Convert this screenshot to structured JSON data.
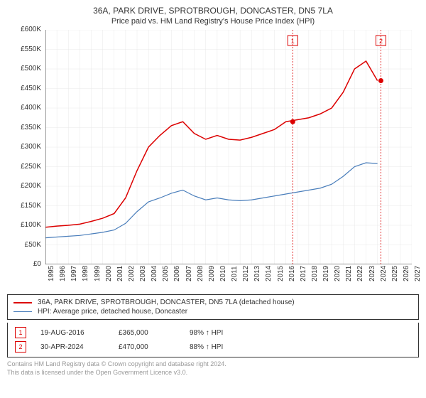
{
  "title": "36A, PARK DRIVE, SPROTBROUGH, DONCASTER, DN5 7LA",
  "subtitle": "Price paid vs. HM Land Registry's House Price Index (HPI)",
  "chart": {
    "type": "line",
    "background": "#ffffff",
    "grid_color": "#e8e8e8",
    "axis_color": "#333333",
    "ylim": [
      0,
      600000
    ],
    "ytick_step": 50000,
    "yticks": [
      "£0",
      "£50K",
      "£100K",
      "£150K",
      "£200K",
      "£250K",
      "£300K",
      "£350K",
      "£400K",
      "£450K",
      "£500K",
      "£550K",
      "£600K"
    ],
    "xlim": [
      1995,
      2027
    ],
    "xticks": [
      1995,
      1996,
      1997,
      1998,
      1999,
      2000,
      2001,
      2002,
      2003,
      2004,
      2005,
      2006,
      2007,
      2008,
      2009,
      2010,
      2011,
      2012,
      2013,
      2014,
      2015,
      2016,
      2017,
      2018,
      2019,
      2020,
      2021,
      2022,
      2023,
      2024,
      2025,
      2026,
      2027
    ],
    "series": [
      {
        "name": "property",
        "color": "#dc0000",
        "width": 1.5,
        "data": [
          [
            1995,
            95000
          ],
          [
            1996,
            98000
          ],
          [
            1997,
            100000
          ],
          [
            1998,
            103000
          ],
          [
            1999,
            110000
          ],
          [
            2000,
            118000
          ],
          [
            2001,
            130000
          ],
          [
            2002,
            170000
          ],
          [
            2003,
            240000
          ],
          [
            2004,
            300000
          ],
          [
            2005,
            330000
          ],
          [
            2006,
            355000
          ],
          [
            2007,
            365000
          ],
          [
            2008,
            335000
          ],
          [
            2009,
            320000
          ],
          [
            2010,
            330000
          ],
          [
            2011,
            320000
          ],
          [
            2012,
            318000
          ],
          [
            2013,
            325000
          ],
          [
            2014,
            335000
          ],
          [
            2015,
            345000
          ],
          [
            2016,
            365000
          ],
          [
            2017,
            370000
          ],
          [
            2018,
            375000
          ],
          [
            2019,
            385000
          ],
          [
            2020,
            400000
          ],
          [
            2021,
            440000
          ],
          [
            2022,
            500000
          ],
          [
            2023,
            520000
          ],
          [
            2024,
            470000
          ]
        ]
      },
      {
        "name": "hpi",
        "color": "#4a7ebb",
        "width": 1.2,
        "data": [
          [
            1995,
            68000
          ],
          [
            1996,
            70000
          ],
          [
            1997,
            72000
          ],
          [
            1998,
            74000
          ],
          [
            1999,
            78000
          ],
          [
            2000,
            82000
          ],
          [
            2001,
            88000
          ],
          [
            2002,
            105000
          ],
          [
            2003,
            135000
          ],
          [
            2004,
            160000
          ],
          [
            2005,
            170000
          ],
          [
            2006,
            182000
          ],
          [
            2007,
            190000
          ],
          [
            2008,
            175000
          ],
          [
            2009,
            165000
          ],
          [
            2010,
            170000
          ],
          [
            2011,
            165000
          ],
          [
            2012,
            163000
          ],
          [
            2013,
            165000
          ],
          [
            2014,
            170000
          ],
          [
            2015,
            175000
          ],
          [
            2016,
            180000
          ],
          [
            2017,
            185000
          ],
          [
            2018,
            190000
          ],
          [
            2019,
            195000
          ],
          [
            2020,
            205000
          ],
          [
            2021,
            225000
          ],
          [
            2022,
            250000
          ],
          [
            2023,
            260000
          ],
          [
            2024,
            258000
          ]
        ]
      }
    ],
    "markers": [
      {
        "n": 1,
        "year": 2016.6,
        "value": 365000,
        "color": "#dc0000"
      },
      {
        "n": 2,
        "year": 2024.3,
        "value": 470000,
        "color": "#dc0000"
      }
    ]
  },
  "legend": {
    "items": [
      {
        "label": "36A, PARK DRIVE, SPROTBROUGH, DONCASTER, DN5 7LA (detached house)",
        "color": "#dc0000",
        "width": 2
      },
      {
        "label": "HPI: Average price, detached house, Doncaster",
        "color": "#4a7ebb",
        "width": 1.2
      }
    ]
  },
  "sales": [
    {
      "n": "1",
      "date": "19-AUG-2016",
      "price": "£365,000",
      "pct": "98% ↑ HPI",
      "color": "#dc0000"
    },
    {
      "n": "2",
      "date": "30-APR-2024",
      "price": "£470,000",
      "pct": "88% ↑ HPI",
      "color": "#dc0000"
    }
  ],
  "attribution": {
    "line1": "Contains HM Land Registry data © Crown copyright and database right 2024.",
    "line2": "This data is licensed under the Open Government Licence v3.0."
  }
}
